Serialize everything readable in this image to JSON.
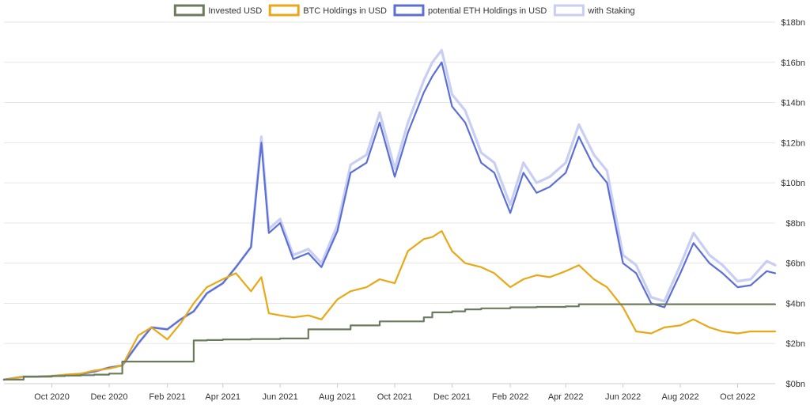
{
  "chart_data": {
    "type": "line",
    "title": "",
    "xlabel": "",
    "ylabel": "",
    "ylim": [
      0,
      18
    ],
    "yticks": [
      "$0bn",
      "$2bn",
      "$4bn",
      "$6bn",
      "$8bn",
      "$10bn",
      "$12bn",
      "$14bn",
      "$16bn",
      "$18bn"
    ],
    "xticks": [
      "Oct 2020",
      "Dec 2020",
      "Feb 2021",
      "Apr 2021",
      "Jun 2021",
      "Aug 2021",
      "Oct 2021",
      "Dec 2021",
      "Feb 2022",
      "Apr 2022",
      "Jun 2022",
      "Aug 2022",
      "Oct 2022"
    ],
    "grid": true,
    "legend": "top-center",
    "x": [
      "2020-08-11",
      "2020-09-01",
      "2020-09-15",
      "2020-10-01",
      "2020-10-15",
      "2020-11-01",
      "2020-11-15",
      "2020-12-01",
      "2020-12-15",
      "2021-01-01",
      "2021-01-15",
      "2021-02-01",
      "2021-02-15",
      "2021-03-01",
      "2021-03-15",
      "2021-04-01",
      "2021-04-15",
      "2021-05-01",
      "2021-05-12",
      "2021-05-20",
      "2021-06-01",
      "2021-06-15",
      "2021-07-01",
      "2021-07-15",
      "2021-08-01",
      "2021-08-15",
      "2021-09-01",
      "2021-09-15",
      "2021-10-01",
      "2021-10-15",
      "2021-11-01",
      "2021-11-10",
      "2021-11-20",
      "2021-12-01",
      "2021-12-15",
      "2022-01-01",
      "2022-01-15",
      "2022-02-01",
      "2022-02-15",
      "2022-03-01",
      "2022-03-15",
      "2022-04-01",
      "2022-04-15",
      "2022-05-01",
      "2022-05-15",
      "2022-06-01",
      "2022-06-15",
      "2022-07-01",
      "2022-07-15",
      "2022-08-01",
      "2022-08-15",
      "2022-09-01",
      "2022-09-15",
      "2022-10-01",
      "2022-10-15",
      "2022-11-01",
      "2022-11-10"
    ],
    "series": [
      {
        "name": "Invested USD",
        "color": "#6b7c5e",
        "values": [
          0.2,
          0.35,
          0.35,
          0.38,
          0.4,
          0.42,
          0.45,
          0.5,
          1.1,
          1.1,
          1.1,
          1.1,
          1.1,
          2.15,
          2.17,
          2.2,
          2.2,
          2.22,
          2.22,
          2.22,
          2.25,
          2.25,
          2.7,
          2.7,
          2.7,
          2.9,
          2.9,
          3.1,
          3.1,
          3.1,
          3.3,
          3.55,
          3.55,
          3.6,
          3.7,
          3.75,
          3.75,
          3.8,
          3.8,
          3.82,
          3.82,
          3.85,
          3.95,
          3.95,
          3.95,
          3.95,
          3.95,
          3.95,
          3.95,
          3.95,
          3.95,
          3.95,
          3.95,
          3.95,
          3.95,
          3.95,
          3.95
        ]
      },
      {
        "name": "BTC Holdings in USD",
        "color": "#e8a817",
        "values": [
          0.2,
          0.35,
          0.35,
          0.38,
          0.45,
          0.5,
          0.65,
          0.75,
          0.9,
          2.4,
          2.8,
          2.2,
          3.0,
          4.0,
          4.8,
          5.2,
          5.5,
          4.6,
          5.3,
          3.5,
          3.4,
          3.3,
          3.4,
          3.2,
          4.2,
          4.6,
          4.8,
          5.2,
          5.0,
          6.6,
          7.2,
          7.3,
          7.6,
          6.6,
          6.0,
          5.8,
          5.5,
          4.8,
          5.2,
          5.4,
          5.3,
          5.6,
          5.9,
          5.2,
          4.8,
          3.8,
          2.6,
          2.5,
          2.8,
          2.9,
          3.2,
          2.8,
          2.6,
          2.5,
          2.6,
          2.6,
          2.6
        ]
      },
      {
        "name": "potential ETH Holdings in USD",
        "color": "#5b6fd6",
        "values": [
          0.2,
          0.35,
          0.35,
          0.38,
          0.42,
          0.48,
          0.6,
          0.8,
          0.9,
          2.0,
          2.8,
          2.7,
          3.2,
          3.6,
          4.5,
          5.0,
          5.8,
          6.8,
          12.0,
          7.5,
          8.0,
          6.2,
          6.5,
          5.8,
          7.6,
          10.5,
          11.0,
          13.0,
          10.3,
          12.5,
          14.5,
          15.3,
          16.0,
          13.8,
          13.0,
          11.0,
          10.5,
          8.5,
          10.5,
          9.5,
          9.8,
          10.5,
          12.3,
          10.8,
          10.0,
          6.0,
          5.5,
          4.0,
          3.8,
          5.5,
          7.0,
          6.0,
          5.5,
          4.8,
          4.9,
          5.6,
          5.5
        ]
      },
      {
        "name": "with Staking",
        "color": "#c8cff2",
        "values": [
          0.2,
          0.35,
          0.35,
          0.38,
          0.42,
          0.48,
          0.6,
          0.8,
          0.9,
          2.0,
          2.8,
          2.7,
          3.2,
          3.6,
          4.5,
          5.0,
          5.8,
          6.8,
          12.3,
          7.7,
          8.2,
          6.4,
          6.7,
          6.0,
          7.9,
          10.9,
          11.4,
          13.5,
          10.7,
          13.0,
          15.1,
          16.0,
          16.6,
          14.4,
          13.6,
          11.5,
          11.0,
          8.9,
          11.0,
          10.0,
          10.3,
          11.0,
          12.9,
          11.4,
          10.6,
          6.4,
          5.9,
          4.3,
          4.1,
          5.9,
          7.5,
          6.4,
          5.9,
          5.1,
          5.2,
          6.1,
          5.9
        ]
      }
    ]
  }
}
